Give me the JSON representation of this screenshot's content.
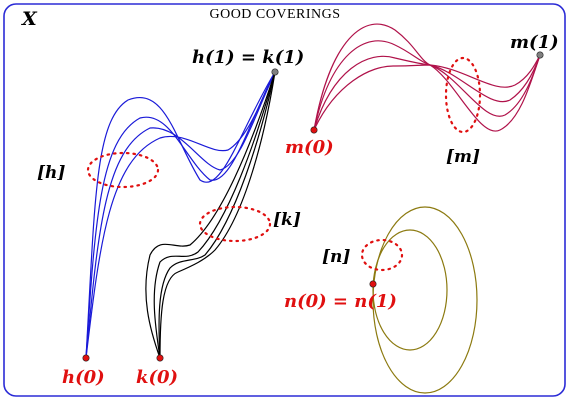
{
  "title": "GOOD COVERINGS",
  "space_label": "X",
  "colors": {
    "frame": "#2b2bd6",
    "h_path": "#1a1ad8",
    "k_path": "#000000",
    "m_path": "#b0124a",
    "n_path": "#8c7a10",
    "cover": "#e01010",
    "start_point": "#e01010",
    "end_point": "#808080",
    "red_label": "#e01010",
    "black_label": "#000000"
  },
  "labels": {
    "h_k_end": "h(1) = k(1)",
    "m_end": "m(1)",
    "m_start": "m(0)",
    "h_class": "[h]",
    "k_class": "[k]",
    "m_class": "[m]",
    "n_class": "[n]",
    "n_loop": "n(0) = n(1)",
    "h_start": "h(0)",
    "k_start": "k(0)"
  }
}
